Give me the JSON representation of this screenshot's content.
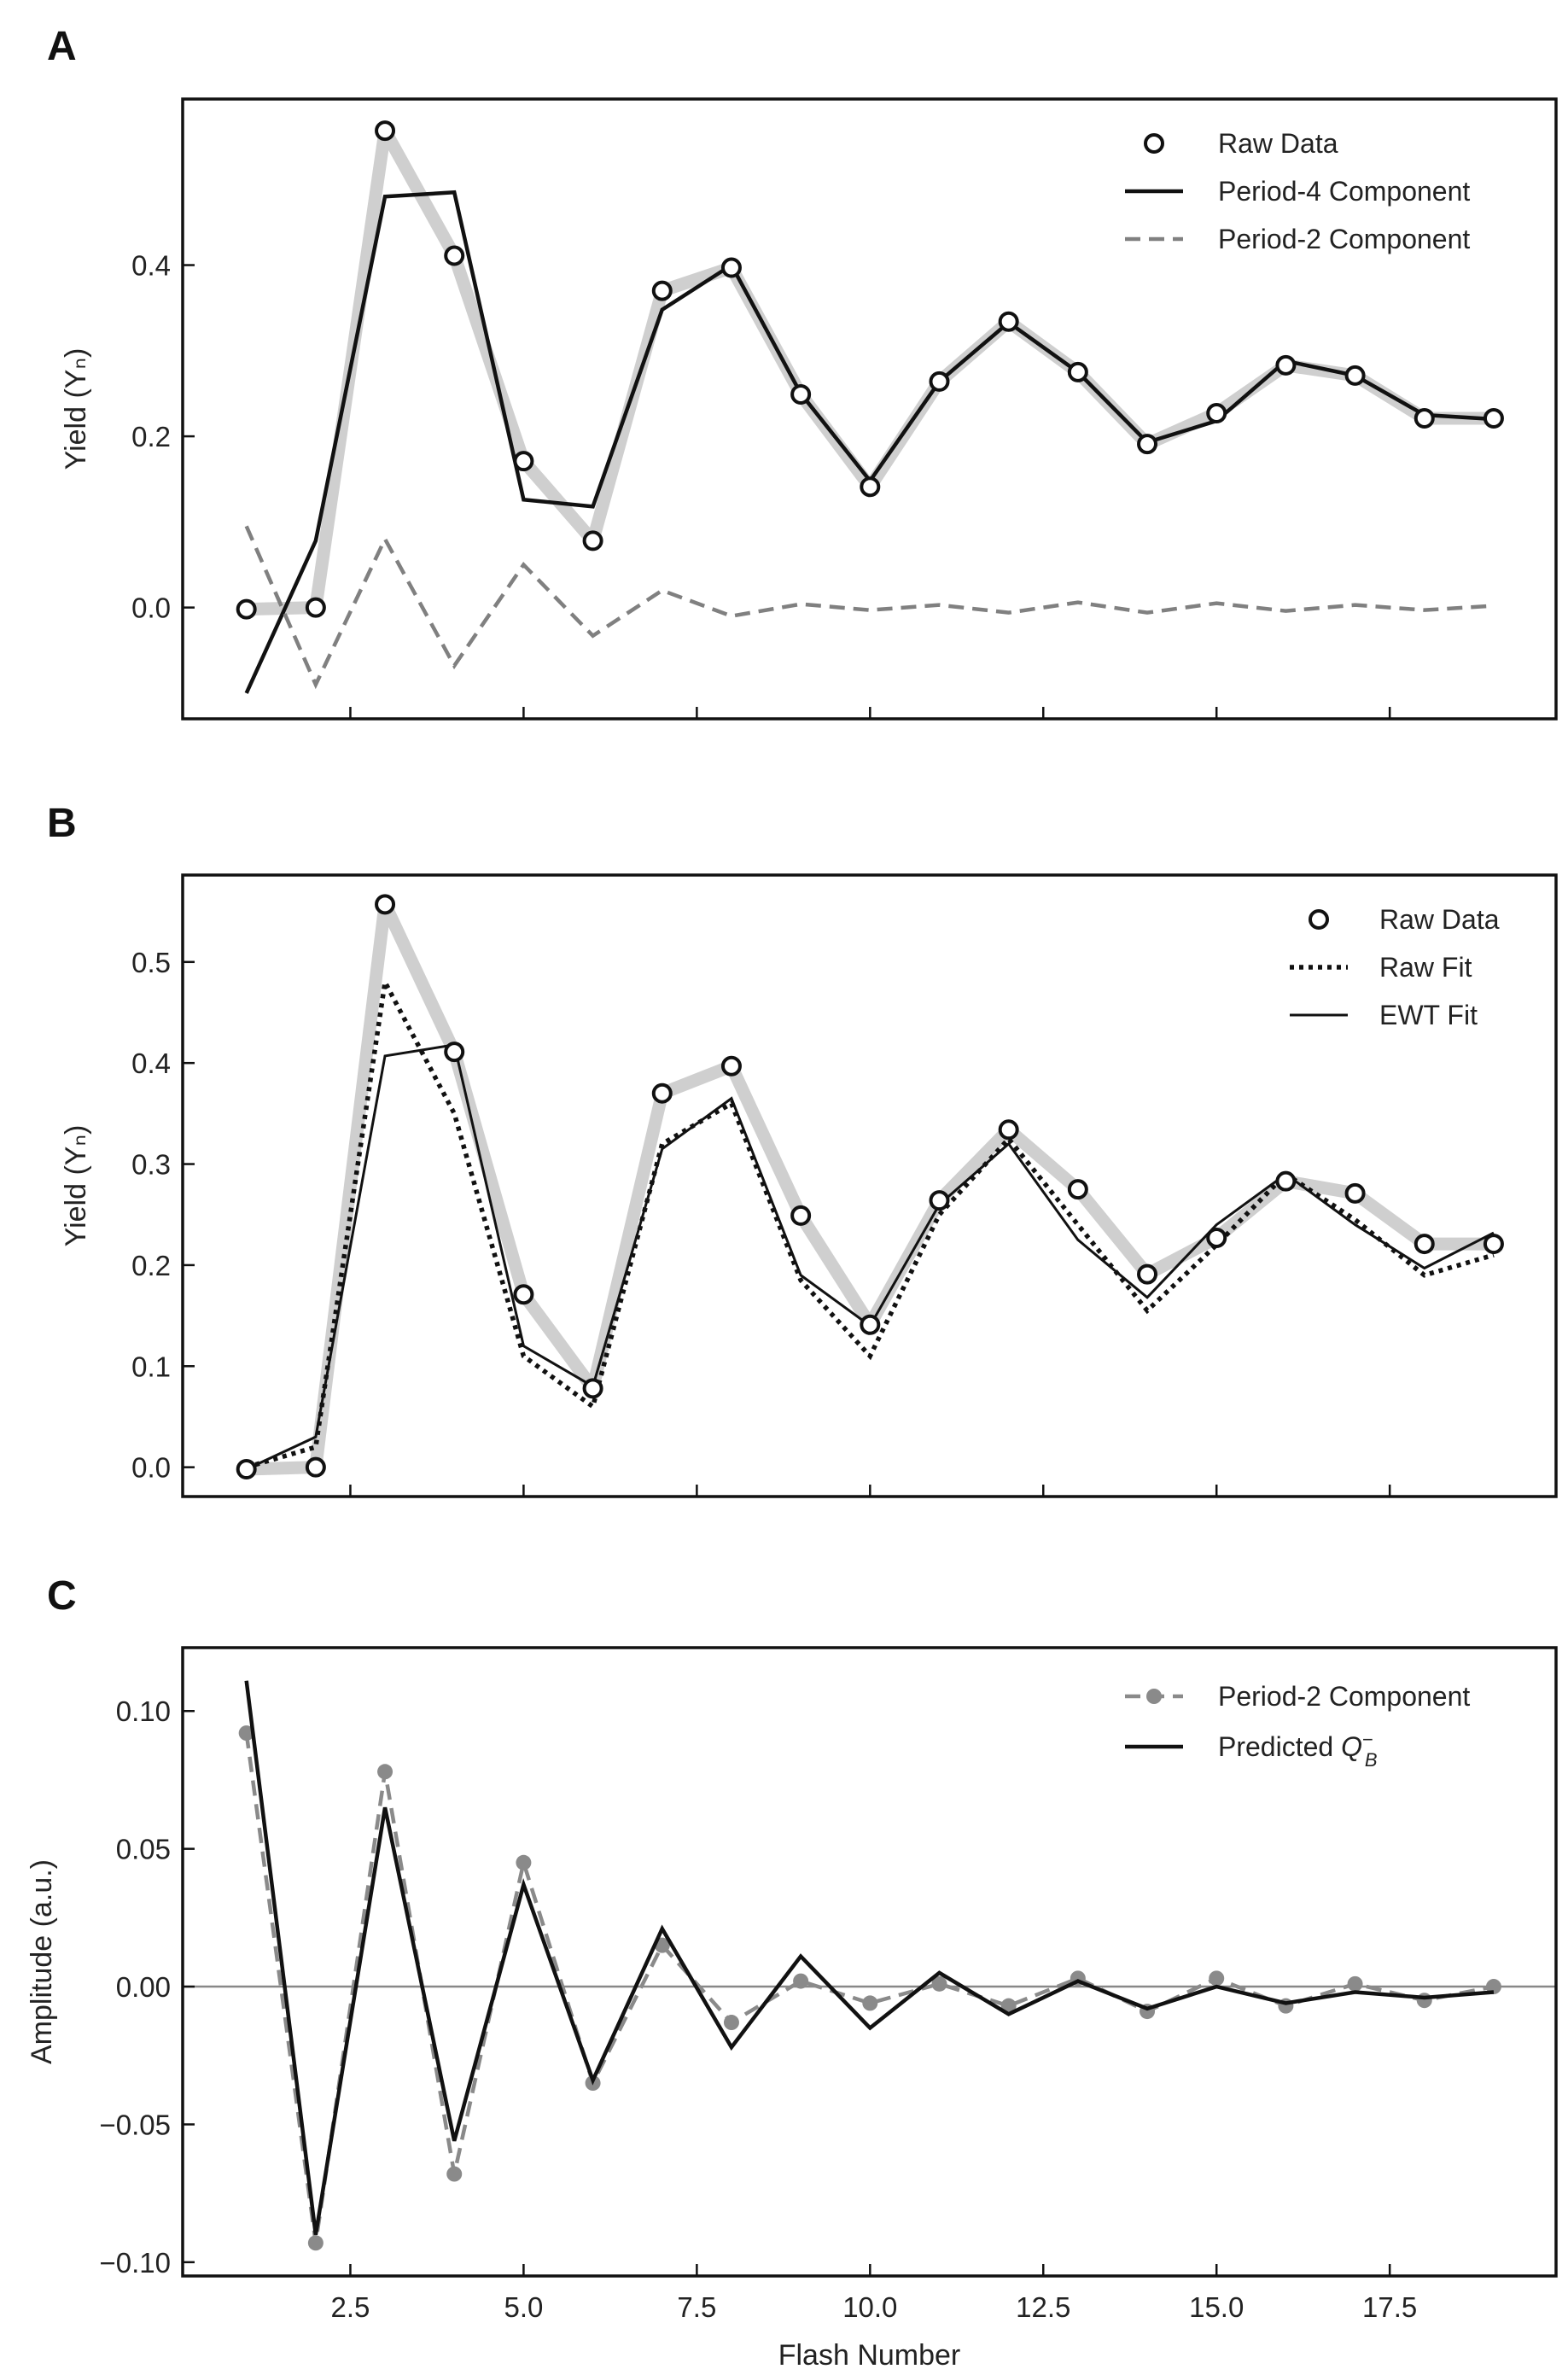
{
  "chart_data": [
    {
      "panel": "A",
      "type": "line",
      "title": "",
      "xlabel": "",
      "ylabel": "Yield (Yₙ)",
      "xlim": [
        0.08,
        19.9
      ],
      "ylim": [
        -0.13,
        0.594
      ],
      "xticks": [
        2.5,
        5.0,
        7.5,
        10.0,
        12.5,
        15.0,
        17.5
      ],
      "xtick_labels_shown": false,
      "yticks": [
        0.0,
        0.2,
        0.4
      ],
      "ytick_labels": [
        "0.0",
        "0.2",
        "0.4"
      ],
      "legend_position": "top-right",
      "x": [
        1,
        2,
        3,
        4,
        5,
        6,
        7,
        8,
        9,
        10,
        11,
        12,
        13,
        14,
        15,
        16,
        17,
        18,
        19
      ],
      "series": [
        {
          "name": "Raw Data",
          "style": "circles",
          "values": [
            -0.002,
            0.0,
            0.557,
            0.411,
            0.171,
            0.078,
            0.37,
            0.397,
            0.249,
            0.141,
            0.264,
            0.334,
            0.275,
            0.191,
            0.227,
            0.283,
            0.271,
            0.221,
            0.221
          ]
        },
        {
          "name": "Period-4 Component",
          "style": "solid",
          "values": [
            -0.1,
            0.078,
            0.48,
            0.485,
            0.126,
            0.118,
            0.348,
            0.4,
            0.25,
            0.148,
            0.264,
            0.333,
            0.275,
            0.193,
            0.218,
            0.288,
            0.271,
            0.225,
            0.22
          ]
        },
        {
          "name": "Period-2 Component",
          "style": "dashed",
          "values": [
            0.095,
            -0.09,
            0.08,
            -0.068,
            0.05,
            -0.033,
            0.02,
            -0.01,
            0.004,
            -0.003,
            0.003,
            -0.006,
            0.006,
            -0.006,
            0.005,
            -0.004,
            0.003,
            -0.003,
            0.002
          ]
        }
      ]
    },
    {
      "panel": "B",
      "type": "line",
      "title": "",
      "xlabel": "",
      "ylabel": "Yield (Yₙ)",
      "xlim": [
        0.08,
        19.9
      ],
      "ylim": [
        -0.029,
        0.586
      ],
      "xticks": [
        2.5,
        5.0,
        7.5,
        10.0,
        12.5,
        15.0,
        17.5
      ],
      "xtick_labels_shown": false,
      "yticks": [
        0.0,
        0.1,
        0.2,
        0.3,
        0.4,
        0.5
      ],
      "ytick_labels": [
        "0.0",
        "0.1",
        "0.2",
        "0.3",
        "0.4",
        "0.5"
      ],
      "legend_position": "top-right",
      "x": [
        1,
        2,
        3,
        4,
        5,
        6,
        7,
        8,
        9,
        10,
        11,
        12,
        13,
        14,
        15,
        16,
        17,
        18,
        19
      ],
      "series": [
        {
          "name": "Raw Data",
          "style": "circles",
          "values": [
            -0.002,
            0.0,
            0.557,
            0.411,
            0.171,
            0.078,
            0.37,
            0.397,
            0.249,
            0.141,
            0.264,
            0.334,
            0.275,
            0.191,
            0.227,
            0.283,
            0.271,
            0.221,
            0.221
          ]
        },
        {
          "name": "Raw Fit",
          "style": "dotted",
          "values": [
            0.0,
            0.02,
            0.48,
            0.35,
            0.11,
            0.06,
            0.32,
            0.36,
            0.185,
            0.11,
            0.25,
            0.325,
            0.24,
            0.155,
            0.22,
            0.29,
            0.245,
            0.19,
            0.21
          ]
        },
        {
          "name": "EWT Fit",
          "style": "thin",
          "values": [
            -0.002,
            0.03,
            0.407,
            0.418,
            0.12,
            0.08,
            0.315,
            0.365,
            0.19,
            0.14,
            0.26,
            0.32,
            0.225,
            0.168,
            0.24,
            0.29,
            0.24,
            0.197,
            0.232
          ]
        }
      ]
    },
    {
      "panel": "C",
      "type": "line",
      "title": "",
      "xlabel": "Flash Number",
      "ylabel": "Amplitude (a.u.)",
      "xlim": [
        0.08,
        19.9
      ],
      "ylim": [
        -0.105,
        0.123
      ],
      "xticks": [
        2.5,
        5.0,
        7.5,
        10.0,
        12.5,
        15.0,
        17.5
      ],
      "xtick_labels": [
        "2.5",
        "5.0",
        "7.5",
        "10.0",
        "12.5",
        "15.0",
        "17.5"
      ],
      "xtick_labels_shown": true,
      "yticks": [
        -0.1,
        -0.05,
        0.0,
        0.05,
        0.1
      ],
      "ytick_labels": [
        "−0.10",
        "−0.05",
        "0.00",
        "0.05",
        "0.10"
      ],
      "zero_line": true,
      "legend_position": "top-right",
      "x": [
        1,
        2,
        3,
        4,
        5,
        6,
        7,
        8,
        9,
        10,
        11,
        12,
        13,
        14,
        15,
        16,
        17,
        18,
        19
      ],
      "series": [
        {
          "name": "Period-2 Component",
          "style": "dashed-dots",
          "values": [
            0.092,
            -0.093,
            0.078,
            -0.068,
            0.045,
            -0.035,
            0.015,
            -0.013,
            0.002,
            -0.006,
            0.001,
            -0.007,
            0.003,
            -0.009,
            0.003,
            -0.007,
            0.001,
            -0.005,
            0.0
          ]
        },
        {
          "name": "Predicted Q_B^−",
          "style": "solid",
          "values": [
            0.111,
            -0.09,
            0.065,
            -0.056,
            0.037,
            -0.034,
            0.021,
            -0.022,
            0.011,
            -0.015,
            0.005,
            -0.01,
            0.002,
            -0.008,
            0.0,
            -0.006,
            -0.002,
            -0.004,
            -0.002
          ]
        }
      ]
    }
  ]
}
